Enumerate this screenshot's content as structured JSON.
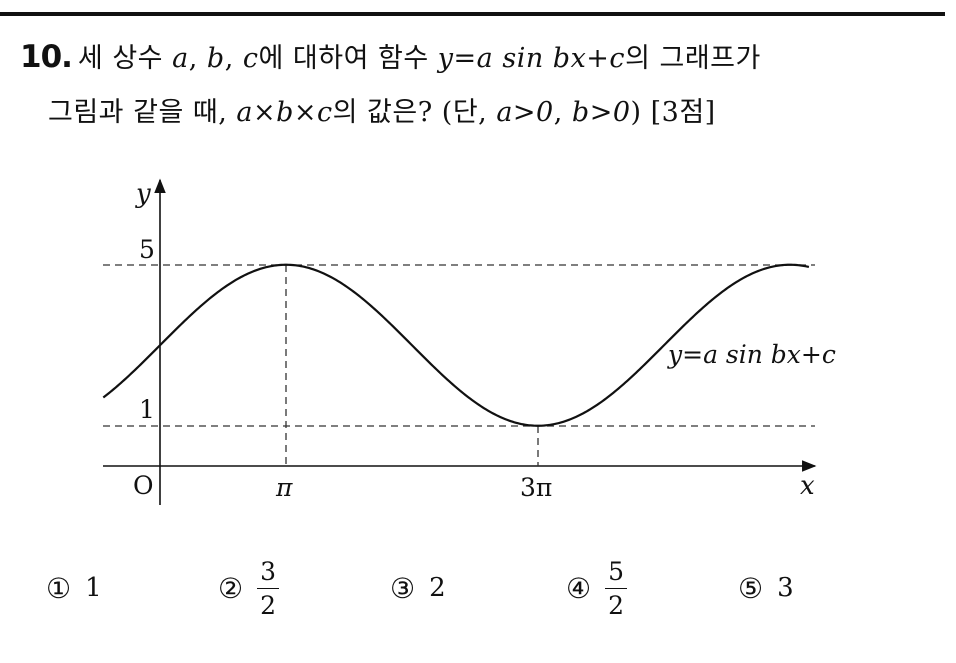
{
  "question": {
    "number": "10.",
    "line1": {
      "t1": "세 상수 ",
      "a": "a",
      "c1": ", ",
      "b": "b",
      "c2": ", ",
      "c": "c",
      "t2": "에 대하여 함수 ",
      "eq": "y=a sin bx+c",
      "t3": "의 그래프가"
    },
    "line2": {
      "t1": "그림과 같을 때, ",
      "expr": "a×b×c",
      "t2": "의 값은? (단, ",
      "cond1": "a>0",
      "c1": ", ",
      "cond2": "b>0",
      "t3": ") [3점]"
    }
  },
  "graph": {
    "y_axis_label": "y",
    "x_axis_label": "x",
    "origin_label": "O",
    "y_tick_labels": [
      "5",
      "1"
    ],
    "x_tick_labels": [
      "π",
      "3π"
    ],
    "curve_label": "y=a sin bx+c",
    "function": {
      "amplitude": 2,
      "frequency": 0.5,
      "vertical_shift": 3,
      "x_start_over_pi": -0.45,
      "x_end_over_pi": 5.15
    },
    "line_color": "#111111"
  },
  "choices": [
    {
      "mark": "①",
      "value": "1"
    },
    {
      "mark": "②",
      "numerator": "3",
      "denominator": "2"
    },
    {
      "mark": "③",
      "value": "2"
    },
    {
      "mark": "④",
      "numerator": "5",
      "denominator": "2"
    },
    {
      "mark": "⑤",
      "value": "3"
    }
  ]
}
